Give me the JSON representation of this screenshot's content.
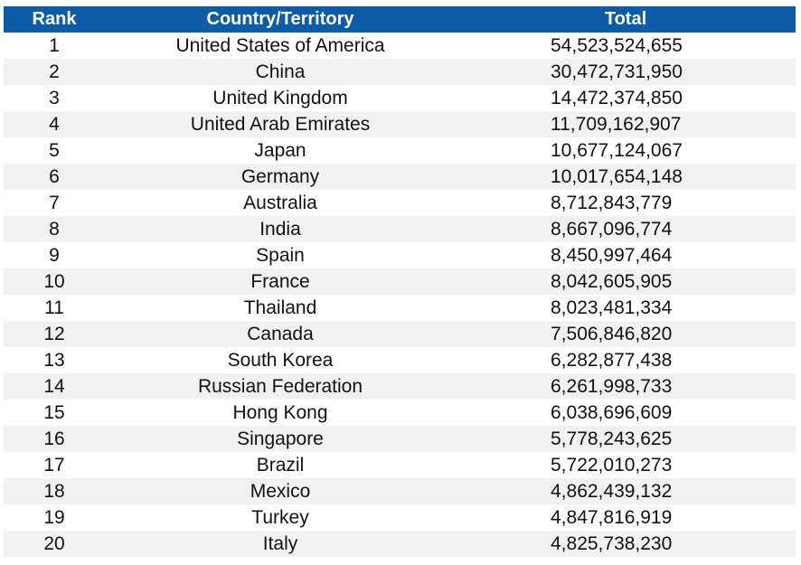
{
  "header": {
    "rank": "Rank",
    "country": "Country/Territory",
    "total": "Total"
  },
  "colors": {
    "header_bg": "#0e5ba7",
    "header_text": "#ffffff",
    "stripe": "#f1f1f1"
  },
  "rows": [
    {
      "rank": "1",
      "country": "United States of America",
      "total": "54,523,524,655"
    },
    {
      "rank": "2",
      "country": "China",
      "total": "30,472,731,950"
    },
    {
      "rank": "3",
      "country": "United Kingdom",
      "total": "14,472,374,850"
    },
    {
      "rank": "4",
      "country": "United Arab Emirates",
      "total": "11,709,162,907"
    },
    {
      "rank": "5",
      "country": "Japan",
      "total": "10,677,124,067"
    },
    {
      "rank": "6",
      "country": "Germany",
      "total": "10,017,654,148"
    },
    {
      "rank": "7",
      "country": "Australia",
      "total": "8,712,843,779"
    },
    {
      "rank": "8",
      "country": "India",
      "total": "8,667,096,774"
    },
    {
      "rank": "9",
      "country": "Spain",
      "total": "8,450,997,464"
    },
    {
      "rank": "10",
      "country": "France",
      "total": "8,042,605,905"
    },
    {
      "rank": "11",
      "country": "Thailand",
      "total": "8,023,481,334"
    },
    {
      "rank": "12",
      "country": "Canada",
      "total": "7,506,846,820"
    },
    {
      "rank": "13",
      "country": "South Korea",
      "total": "6,282,877,438"
    },
    {
      "rank": "14",
      "country": "Russian Federation",
      "total": "6,261,998,733"
    },
    {
      "rank": "15",
      "country": "Hong Kong",
      "total": "6,038,696,609"
    },
    {
      "rank": "16",
      "country": "Singapore",
      "total": "5,778,243,625"
    },
    {
      "rank": "17",
      "country": "Brazil",
      "total": "5,722,010,273"
    },
    {
      "rank": "18",
      "country": "Mexico",
      "total": "4,862,439,132"
    },
    {
      "rank": "19",
      "country": "Turkey",
      "total": "4,847,816,919"
    },
    {
      "rank": "20",
      "country": "Italy",
      "total": "4,825,738,230"
    }
  ]
}
